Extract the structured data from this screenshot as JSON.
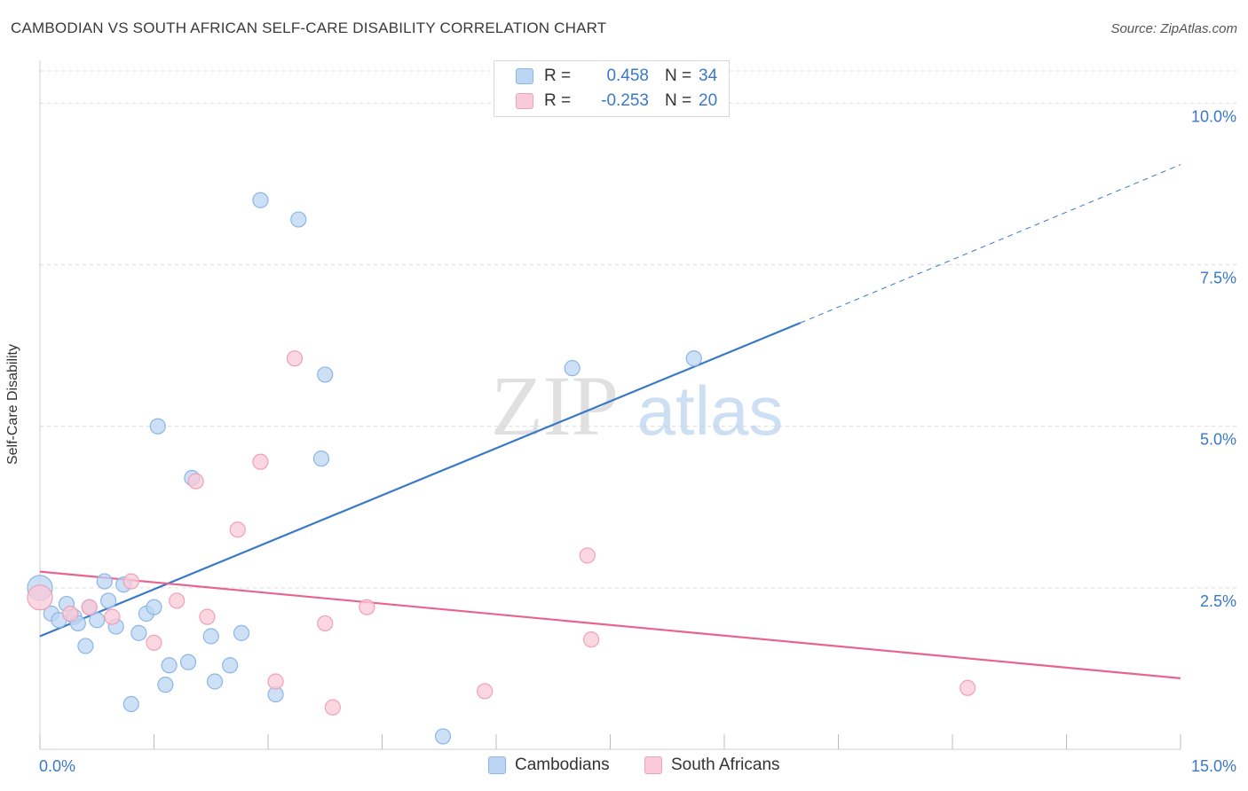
{
  "title": "CAMBODIAN VS SOUTH AFRICAN SELF-CARE DISABILITY CORRELATION CHART",
  "source": "Source: ZipAtlas.com",
  "watermark": {
    "zip": "ZIP",
    "atlas": "atlas"
  },
  "legend": {
    "rows": [
      {
        "r_label": "R =",
        "r_value": "0.458",
        "n_label": "N =",
        "n_value": "34",
        "color": "#8bb6e8",
        "fill": "#bcd5f3"
      },
      {
        "r_label": "R =",
        "r_value": "-0.253",
        "n_label": "N =",
        "n_value": "20",
        "color": "#f0a0b8",
        "fill": "#f9cad7"
      }
    ]
  },
  "chart_data": {
    "type": "scatter",
    "title": "CAMBODIAN VS SOUTH AFRICAN SELF-CARE DISABILITY CORRELATION CHART",
    "xlabel": "",
    "ylabel": "Self-Care Disability",
    "xlim": [
      0,
      15
    ],
    "ylim": [
      0,
      10.5
    ],
    "x_tick_labels": {
      "left": "0.0%",
      "right": "15.0%"
    },
    "y_ticks": [
      {
        "value": 10.0,
        "label": "10.0%"
      },
      {
        "value": 7.5,
        "label": "7.5%"
      },
      {
        "value": 5.0,
        "label": "5.0%"
      },
      {
        "value": 2.5,
        "label": "2.5%"
      }
    ],
    "grid": true,
    "legend_position": "top-center",
    "series": [
      {
        "name": "Cambodians",
        "color": "#3a78c9",
        "marker_fill": "#bcd5f3",
        "marker_stroke": "#8bb6e8",
        "points": [
          [
            0.0,
            2.5
          ],
          [
            0.15,
            2.1
          ],
          [
            0.25,
            2.0
          ],
          [
            0.35,
            2.25
          ],
          [
            0.45,
            2.05
          ],
          [
            0.5,
            1.95
          ],
          [
            0.6,
            1.6
          ],
          [
            0.65,
            2.2
          ],
          [
            0.75,
            2.0
          ],
          [
            0.85,
            2.6
          ],
          [
            0.9,
            2.3
          ],
          [
            1.0,
            1.9
          ],
          [
            1.1,
            2.55
          ],
          [
            1.2,
            0.7
          ],
          [
            1.3,
            1.8
          ],
          [
            1.4,
            2.1
          ],
          [
            1.5,
            2.2
          ],
          [
            1.55,
            5.0
          ],
          [
            1.65,
            1.0
          ],
          [
            1.7,
            1.3
          ],
          [
            1.95,
            1.35
          ],
          [
            2.0,
            4.2
          ],
          [
            2.25,
            1.75
          ],
          [
            2.3,
            1.05
          ],
          [
            2.5,
            1.3
          ],
          [
            2.65,
            1.8
          ],
          [
            2.9,
            8.5
          ],
          [
            3.1,
            0.85
          ],
          [
            3.4,
            8.2
          ],
          [
            3.7,
            4.5
          ],
          [
            3.75,
            5.8
          ],
          [
            5.3,
            0.2
          ],
          [
            7.0,
            5.9
          ],
          [
            8.6,
            6.05
          ]
        ],
        "trend": {
          "x0": 0,
          "y0": 1.75,
          "x1": 10.0,
          "y1": 6.6,
          "dash_x1": 15.0,
          "dash_y1": 9.05
        }
      },
      {
        "name": "South Africans",
        "color": "#e8648e",
        "marker_fill": "#f9cad7",
        "marker_stroke": "#f0a0b8",
        "points": [
          [
            0.0,
            2.35
          ],
          [
            0.4,
            2.1
          ],
          [
            0.65,
            2.2
          ],
          [
            0.95,
            2.05
          ],
          [
            1.2,
            2.6
          ],
          [
            1.5,
            1.65
          ],
          [
            1.8,
            2.3
          ],
          [
            2.05,
            4.15
          ],
          [
            2.2,
            2.05
          ],
          [
            2.6,
            3.4
          ],
          [
            2.9,
            4.45
          ],
          [
            3.1,
            1.05
          ],
          [
            3.35,
            6.05
          ],
          [
            3.75,
            1.95
          ],
          [
            3.85,
            0.65
          ],
          [
            4.3,
            2.2
          ],
          [
            5.85,
            0.9
          ],
          [
            7.2,
            3.0
          ],
          [
            7.25,
            1.7
          ],
          [
            12.2,
            0.95
          ]
        ],
        "trend": {
          "x0": 0,
          "y0": 2.75,
          "x1": 15.0,
          "y1": 1.1
        }
      }
    ]
  }
}
